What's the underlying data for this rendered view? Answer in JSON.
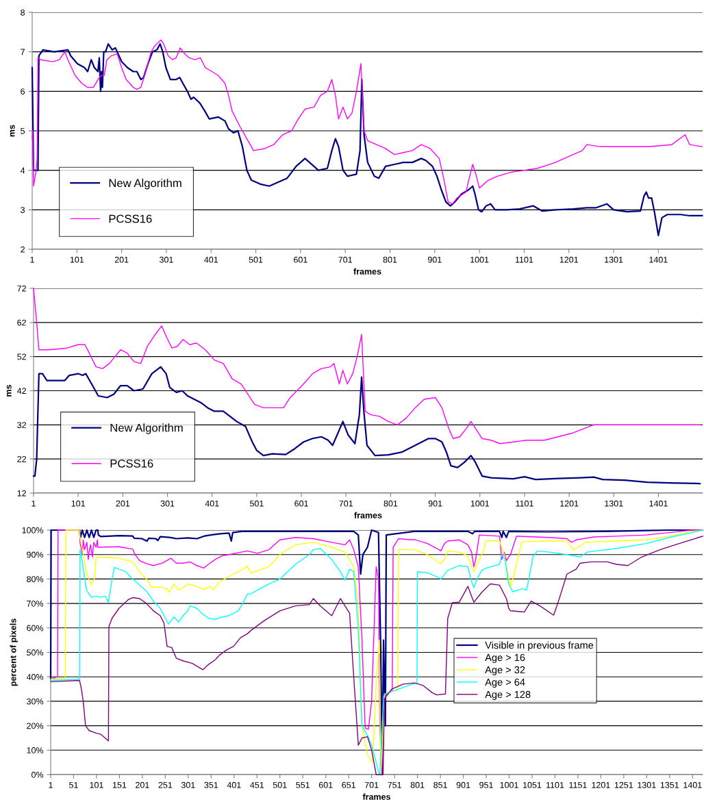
{
  "chart_data": [
    {
      "type": "line",
      "xlabel": "frames",
      "ylabel": "ms",
      "xlim": [
        1,
        1500
      ],
      "ylim": [
        2,
        8
      ],
      "xticks": [
        1,
        101,
        201,
        301,
        401,
        501,
        601,
        701,
        801,
        901,
        1001,
        1101,
        1201,
        1301,
        1401
      ],
      "yticks": [
        2,
        3,
        4,
        5,
        6,
        7,
        8
      ],
      "grid": "y",
      "legend": "bottom left",
      "series": [
        {
          "name": "New Algorithm",
          "color": "#000080",
          "x": [
            1,
            2,
            4,
            14,
            16,
            25,
            50,
            81,
            87,
            102,
            118,
            125,
            133,
            140,
            148,
            151,
            154,
            156,
            158,
            161,
            165,
            171,
            180,
            187,
            201,
            214,
            227,
            235,
            244,
            250,
            260,
            270,
            280,
            287,
            293,
            300,
            310,
            323,
            331,
            338,
            348,
            356,
            362,
            376,
            387,
            397,
            417,
            432,
            440,
            451,
            461,
            471,
            481,
            491,
            511,
            531,
            551,
            571,
            591,
            611,
            631,
            641,
            661,
            671,
            679,
            686,
            696,
            706,
            726,
            734,
            738,
            743,
            751,
            766,
            776,
            791,
            811,
            831,
            851,
            871,
            881,
            896,
            906,
            916,
            926,
            936,
            946,
            961,
            976,
            986,
            991,
            999,
            1006,
            1016,
            1026,
            1036,
            1061,
            1091,
            1121,
            1141,
            1171,
            1211,
            1241,
            1261,
            1286,
            1301,
            1331,
            1361,
            1369,
            1374,
            1379,
            1386,
            1393,
            1401,
            1409,
            1421,
            1451,
            1471,
            1499
          ],
          "values": [
            6.6,
            5.8,
            4.0,
            4.0,
            6.9,
            7.05,
            7.0,
            7.05,
            6.9,
            6.7,
            6.6,
            6.5,
            6.8,
            6.6,
            6.5,
            6.85,
            6.0,
            6.5,
            6.1,
            7.0,
            7.0,
            7.2,
            7.05,
            7.1,
            6.75,
            6.6,
            6.5,
            6.5,
            6.3,
            6.35,
            6.7,
            7.0,
            7.05,
            7.2,
            7.0,
            6.6,
            6.3,
            6.3,
            6.35,
            6.2,
            6.0,
            5.8,
            5.85,
            5.7,
            5.5,
            5.3,
            5.35,
            5.25,
            5.05,
            4.95,
            5.0,
            4.6,
            4.0,
            3.75,
            3.65,
            3.6,
            3.7,
            3.8,
            4.1,
            4.3,
            4.1,
            4.0,
            4.05,
            4.5,
            4.8,
            4.6,
            4.0,
            3.85,
            3.9,
            4.5,
            6.3,
            4.9,
            4.2,
            3.85,
            3.8,
            4.1,
            4.15,
            4.2,
            4.2,
            4.3,
            4.25,
            4.1,
            3.85,
            3.5,
            3.2,
            3.1,
            3.2,
            3.4,
            3.5,
            3.6,
            3.4,
            3.0,
            2.95,
            3.1,
            3.15,
            3.0,
            3.0,
            3.02,
            3.1,
            2.97,
            3.0,
            3.02,
            3.05,
            3.05,
            3.15,
            3.0,
            2.95,
            2.97,
            3.35,
            3.45,
            3.3,
            3.3,
            2.9,
            2.35,
            2.8,
            2.88,
            2.88,
            2.85,
            2.85
          ]
        },
        {
          "name": "PCSS16",
          "color": "#ff00ff",
          "x": [
            1,
            2,
            4,
            10,
            12,
            14,
            20,
            47,
            62,
            74,
            81,
            97,
            112,
            125,
            138,
            148,
            155,
            162,
            168,
            178,
            191,
            201,
            211,
            227,
            235,
            244,
            255,
            267,
            275,
            289,
            295,
            305,
            315,
            323,
            332,
            342,
            352,
            365,
            377,
            388,
            403,
            417,
            432,
            440,
            448,
            466,
            481,
            496,
            521,
            541,
            561,
            581,
            596,
            611,
            631,
            646,
            661,
            671,
            679,
            686,
            696,
            706,
            716,
            726,
            736,
            743,
            751,
            771,
            791,
            811,
            831,
            851,
            871,
            891,
            911,
            921,
            931,
            941,
            951,
            971,
            976,
            986,
            993,
            1001,
            1021,
            1041,
            1071,
            1101,
            1131,
            1171,
            1201,
            1231,
            1241,
            1271,
            1331,
            1381,
            1431,
            1461,
            1471,
            1499
          ],
          "values": [
            4.8,
            5.0,
            3.6,
            4.0,
            4.3,
            6.85,
            6.8,
            6.75,
            6.8,
            7.0,
            6.8,
            6.4,
            6.2,
            6.1,
            6.1,
            6.3,
            6.4,
            6.4,
            6.8,
            6.9,
            6.95,
            6.6,
            6.3,
            6.1,
            6.05,
            6.1,
            6.5,
            7.0,
            7.15,
            7.3,
            7.2,
            6.9,
            6.8,
            6.85,
            7.1,
            6.95,
            6.85,
            6.8,
            6.85,
            6.6,
            6.5,
            6.4,
            6.2,
            5.9,
            5.5,
            5.1,
            4.8,
            4.5,
            4.55,
            4.65,
            4.9,
            5.0,
            5.3,
            5.55,
            5.6,
            5.9,
            6.0,
            6.3,
            5.9,
            5.3,
            5.6,
            5.3,
            5.45,
            6.0,
            6.7,
            5.0,
            4.75,
            4.65,
            4.55,
            4.4,
            4.45,
            4.5,
            4.65,
            4.55,
            4.3,
            3.8,
            3.2,
            3.15,
            3.3,
            3.45,
            3.7,
            4.15,
            3.9,
            3.55,
            3.75,
            3.85,
            3.95,
            4.0,
            4.05,
            4.2,
            4.35,
            4.5,
            4.65,
            4.6,
            4.6,
            4.6,
            4.65,
            4.9,
            4.65,
            4.6
          ]
        }
      ]
    },
    {
      "type": "line",
      "xlabel": "frames",
      "ylabel": "ms",
      "xlim": [
        1,
        1500
      ],
      "ylim": [
        12,
        72
      ],
      "xticks": [
        1,
        101,
        201,
        301,
        401,
        501,
        601,
        701,
        801,
        901,
        1001,
        1101,
        1201,
        1301,
        1401
      ],
      "yticks": [
        12,
        22,
        32,
        42,
        52,
        62,
        72
      ],
      "grid": "y",
      "legend": "bottom left",
      "series": [
        {
          "name": "New Algorithm",
          "color": "#000080",
          "x": [
            1,
            4,
            8,
            13,
            21,
            31,
            56,
            71,
            81,
            101,
            111,
            118,
            131,
            146,
            166,
            181,
            196,
            211,
            226,
            246,
            266,
            286,
            298,
            306,
            321,
            334,
            346,
            361,
            376,
            391,
            406,
            426,
            441,
            456,
            476,
            491,
            501,
            516,
            536,
            566,
            586,
            606,
            626,
            646,
            661,
            671,
            681,
            694,
            706,
            721,
            731,
            736,
            741,
            748,
            766,
            796,
            826,
            856,
            886,
            901,
            916,
            926,
            936,
            951,
            966,
            981,
            991,
            1006,
            1026,
            1076,
            1101,
            1126,
            1176,
            1226,
            1256,
            1276,
            1326,
            1376,
            1426,
            1494
          ],
          "values": [
            17,
            17,
            22,
            47,
            47,
            45,
            45,
            45,
            46.5,
            47,
            46.5,
            47,
            44,
            40.5,
            40,
            41,
            43.5,
            43.5,
            42,
            42.5,
            47,
            49,
            47,
            43,
            41.5,
            42,
            40.5,
            39.5,
            38.5,
            37,
            36,
            36,
            34.5,
            33,
            31.5,
            27,
            24.5,
            23,
            23.5,
            23.3,
            25,
            27,
            28,
            28.5,
            27.5,
            26,
            29,
            33,
            29,
            26.5,
            35,
            46,
            36,
            26,
            23,
            23.2,
            24,
            26,
            28,
            28,
            27,
            24,
            20,
            19.5,
            21,
            23,
            21,
            17,
            16.5,
            16.2,
            16.8,
            16,
            16.3,
            16.5,
            16.7,
            16,
            15.8,
            15.2,
            15,
            14.8
          ]
        },
        {
          "name": "PCSS16",
          "color": "#ff00ff",
          "x": [
            1,
            8,
            13,
            36,
            76,
            101,
            116,
            126,
            141,
            156,
            171,
            196,
            211,
            226,
            241,
            256,
            271,
            288,
            298,
            311,
            323,
            336,
            351,
            366,
            386,
            406,
            426,
            446,
            466,
            481,
            496,
            516,
            536,
            561,
            576,
            606,
            626,
            646,
            666,
            674,
            686,
            694,
            704,
            716,
            726,
            736,
            744,
            756,
            776,
            796,
            816,
            836,
            856,
            876,
            901,
            916,
            931,
            941,
            956,
            971,
            981,
            991,
            1006,
            1026,
            1046,
            1076,
            1106,
            1146,
            1176,
            1206,
            1236,
            1256,
            1326,
            1426,
            1494
          ],
          "values": [
            72,
            62,
            54,
            54,
            54.5,
            55.5,
            55.5,
            53,
            49,
            48.5,
            50,
            54,
            53,
            50.5,
            50,
            55,
            58,
            61,
            58,
            54.5,
            55,
            57,
            55.5,
            56,
            54,
            51,
            50,
            45.5,
            44,
            41,
            38,
            37,
            37,
            37,
            40,
            44,
            47,
            48.5,
            49,
            50,
            44,
            48,
            44,
            47,
            52,
            58.5,
            36,
            35,
            34.5,
            33,
            32,
            34,
            37,
            39.5,
            40,
            37,
            31,
            28,
            28.5,
            31,
            33,
            31,
            28,
            27.5,
            26.5,
            27,
            27.5,
            27.5,
            28.5,
            29.5,
            31,
            32,
            32,
            32,
            32
          ]
        }
      ]
    },
    {
      "type": "line",
      "xlabel": "frames",
      "ylabel": "percent of pixels",
      "xlim": [
        1,
        1423
      ],
      "ylim": [
        0,
        100
      ],
      "xticks": [
        1,
        51,
        101,
        151,
        201,
        251,
        301,
        351,
        401,
        451,
        501,
        551,
        601,
        651,
        701,
        751,
        801,
        851,
        901,
        951,
        1001,
        1051,
        1101,
        1151,
        1201,
        1251,
        1301,
        1351,
        1401
      ],
      "yticks": [
        {
          "value": 0,
          "label": "0%"
        },
        {
          "value": 10,
          "label": "10%"
        },
        {
          "value": 20,
          "label": "20%"
        },
        {
          "value": 30,
          "label": "30%"
        },
        {
          "value": 40,
          "label": "40%"
        },
        {
          "value": 50,
          "label": "50%"
        },
        {
          "value": 60,
          "label": "60%"
        },
        {
          "value": 70,
          "label": "70%"
        },
        {
          "value": 80,
          "label": "80%"
        },
        {
          "value": 90,
          "label": "90%"
        },
        {
          "value": 100,
          "label": "100%"
        }
      ],
      "grid": "y",
      "legend": "right",
      "series": [
        {
          "name": "Visible in previous frame",
          "color": "#000080",
          "x": [
            1,
            2,
            64,
            66,
            70,
            75,
            80,
            85,
            90,
            95,
            100,
            104,
            105,
            110,
            150,
            180,
            183,
            200,
            211,
            215,
            230,
            235,
            240,
            260,
            275,
            300,
            320,
            335,
            350,
            370,
            390,
            395,
            398,
            418,
            438,
            600,
            662,
            672,
            677,
            682,
            692,
            701,
            716,
            721,
            724,
            727,
            731,
            733,
            794,
            911,
            921,
            926,
            980,
            985,
            988,
            995,
            1000,
            1088,
            1210,
            1300,
            1350,
            1423
          ],
          "values": [
            39,
            100,
            100,
            97,
            100,
            97,
            100,
            97,
            100,
            97,
            100,
            100,
            98,
            97.4,
            97.7,
            97.6,
            96.7,
            96.5,
            95.5,
            96.7,
            96.5,
            95.8,
            97.3,
            97,
            96.5,
            96.8,
            96.5,
            97.5,
            98,
            98.5,
            98.8,
            95.5,
            99,
            99.5,
            99.5,
            99.5,
            99.5,
            98,
            82,
            90,
            93,
            100,
            99,
            50,
            0,
            55,
            20,
            98,
            99.5,
            99.5,
            98.5,
            99.5,
            99.5,
            97,
            99.5,
            97,
            99.5,
            99.3,
            99.5,
            99.8,
            100,
            100
          ]
        },
        {
          "name": "Age > 16",
          "color": "#ff00ff",
          "x": [
            1,
            8,
            16,
            17,
            64,
            65,
            67,
            70,
            72,
            75,
            80,
            83,
            85,
            88,
            92,
            95,
            100,
            103,
            104,
            110,
            150,
            180,
            185,
            195,
            210,
            225,
            245,
            263,
            275,
            290,
            305,
            320,
            335,
            345,
            360,
            375,
            390,
            430,
            452,
            477,
            501,
            535,
            574,
            614,
            643,
            653,
            662,
            672,
            680,
            687,
            694,
            701,
            711,
            716,
            719,
            723,
            729,
            741,
            746,
            748,
            760,
            789,
            794,
            823,
            843,
            852,
            860,
            867,
            892,
            911,
            919,
            924,
            928,
            936,
            980,
            985,
            990,
            995,
            1000,
            1004,
            1017,
            1088,
            1127,
            1137,
            1147,
            1186,
            1235,
            1300,
            1350,
            1400,
            1423
          ],
          "values": [
            39,
            39.5,
            40,
            100,
            100,
            95,
            93,
            90,
            96,
            92,
            95,
            88,
            91,
            94,
            89,
            95,
            93,
            96,
            93,
            93,
            93.2,
            92.2,
            90,
            87.5,
            86.3,
            85.5,
            86.5,
            88.5,
            86.5,
            86.5,
            87,
            85.5,
            84.5,
            86,
            88,
            89.5,
            90,
            91.5,
            90.5,
            92,
            96,
            97,
            96.5,
            95,
            94,
            96,
            92,
            85,
            55,
            19,
            18.5,
            30,
            85,
            80,
            20,
            0,
            32,
            34,
            34.5,
            93,
            96.5,
            96,
            96.2,
            94.5,
            92.5,
            91.5,
            94.5,
            95.5,
            96,
            94,
            91,
            85,
            88,
            98,
            97.5,
            88,
            91,
            87.5,
            89,
            90,
            97.5,
            97,
            96.5,
            95,
            96,
            97.2,
            97.5,
            98,
            99,
            100,
            100
          ]
        },
        {
          "name": "Age > 32",
          "color": "#ffff00",
          "x": [
            1,
            33,
            34,
            64,
            65,
            70,
            75,
            80,
            90,
            96,
            100,
            110,
            150,
            180,
            195,
            210,
            220,
            240,
            255,
            260,
            270,
            280,
            290,
            300,
            320,
            335,
            350,
            356,
            365,
            380,
            400,
            420,
            430,
            438,
            477,
            501,
            535,
            574,
            614,
            643,
            662,
            672,
            680,
            692,
            703,
            712,
            718,
            721,
            730,
            741,
            758,
            760,
            789,
            794,
            823,
            852,
            860,
            867,
            892,
            911,
            924,
            931,
            946,
            951,
            980,
            990,
            1000,
            1004,
            1012,
            1019,
            1029,
            1088,
            1127,
            1142,
            1156,
            1166,
            1235,
            1300,
            1350,
            1400,
            1423
          ],
          "values": [
            39,
            39.5,
            100,
            100,
            97,
            92,
            87,
            82,
            77.6,
            80,
            88.6,
            89,
            88.5,
            87,
            83,
            80,
            76.7,
            76.7,
            76,
            74.5,
            78,
            75.5,
            76.5,
            78,
            77,
            75.7,
            77,
            75.5,
            78,
            80,
            82,
            84,
            85.2,
            82.5,
            85,
            90,
            94,
            95,
            93,
            91,
            85,
            70,
            20,
            8,
            5,
            40,
            55,
            0,
            33,
            34,
            34.5,
            92,
            92,
            92,
            90,
            86.2,
            88,
            91.4,
            91,
            89.5,
            82.9,
            86,
            92,
            95.7,
            95.5,
            90,
            81,
            77.1,
            82,
            88,
            95.2,
            95.5,
            95.5,
            91.9,
            93.5,
            95,
            95.5,
            96,
            97.5,
            99.5,
            100
          ]
        },
        {
          "name": "Age > 64",
          "color": "#00ffff",
          "x": [
            1,
            64,
            65,
            70,
            75,
            80,
            90,
            100,
            110,
            120,
            127,
            135,
            140,
            150,
            165,
            180,
            195,
            210,
            225,
            240,
            258,
            270,
            280,
            290,
            300,
            305,
            320,
            330,
            345,
            360,
            375,
            390,
            400,
            410,
            420,
            430,
            438,
            477,
            501,
            535,
            565,
            574,
            589,
            614,
            633,
            643,
            653,
            662,
            672,
            680,
            692,
            701,
            711,
            716,
            719,
            727,
            730,
            760,
            790,
            800,
            801,
            823,
            843,
            852,
            867,
            892,
            911,
            919,
            924,
            931,
            941,
            951,
            980,
            985,
            992,
            1000,
            1009,
            1029,
            1039,
            1046,
            1053,
            1063,
            1088,
            1127,
            1156,
            1171,
            1235,
            1300,
            1350,
            1400,
            1423
          ],
          "values": [
            38.5,
            39,
            92,
            87,
            80,
            75.2,
            72.5,
            73,
            72.5,
            73,
            70.5,
            80,
            84.8,
            84,
            83,
            80,
            77.5,
            75,
            71,
            68,
            61.5,
            64.5,
            62.4,
            65,
            67,
            69,
            68,
            66,
            64,
            63.5,
            64.5,
            65,
            66,
            67,
            70,
            73.8,
            74,
            78,
            80,
            86,
            90,
            92,
            92.5,
            88,
            83,
            79.5,
            84,
            83,
            60,
            20,
            16,
            12,
            5,
            1,
            0,
            32,
            33,
            35,
            37,
            37.5,
            83,
            82.5,
            81,
            80,
            83.5,
            85.5,
            85,
            79,
            76.5,
            80,
            83.5,
            84.5,
            86,
            90,
            88,
            78,
            74.8,
            76,
            75.5,
            82,
            89,
            91.5,
            91,
            90,
            89,
            91,
            92.5,
            94.5,
            97,
            99,
            100
          ]
        },
        {
          "name": "Age > 128",
          "color": "#800080",
          "x": [
            1,
            64,
            68,
            72,
            77,
            85,
            100,
            110,
            127,
            128,
            135,
            150,
            170,
            180,
            195,
            210,
            225,
            240,
            248,
            255,
            265,
            275,
            290,
            310,
            333,
            345,
            360,
            370,
            385,
            400,
            415,
            430,
            438,
            467,
            501,
            535,
            565,
            574,
            589,
            614,
            633,
            653,
            662,
            672,
            680,
            692,
            701,
            711,
            726,
            729,
            745,
            770,
            794,
            813,
            833,
            843,
            862,
            867,
            877,
            892,
            911,
            919,
            924,
            941,
            960,
            980,
            995,
            1000,
            1004,
            1034,
            1044,
            1049,
            1068,
            1098,
            1107,
            1127,
            1147,
            1156,
            1181,
            1215,
            1235,
            1260,
            1290,
            1330,
            1380,
            1423
          ],
          "values": [
            38,
            38.5,
            35,
            30,
            20,
            18,
            17,
            16.5,
            13.8,
            60.5,
            64,
            68,
            71.5,
            72.4,
            72,
            70,
            67,
            65,
            62,
            52.4,
            52,
            47.6,
            46.5,
            45.5,
            42.9,
            45,
            47,
            49,
            51,
            52.5,
            56,
            57.6,
            59,
            63,
            67,
            69,
            69.5,
            72,
            69,
            65,
            72,
            66,
            40,
            12,
            15,
            15.5,
            10,
            0,
            0,
            31,
            35,
            37,
            37.5,
            36.5,
            33.5,
            32.6,
            33,
            63.8,
            70.3,
            70.5,
            77,
            73,
            70.5,
            74.5,
            78,
            77.5,
            72,
            68,
            67,
            66.5,
            69.5,
            71,
            69,
            65.2,
            70,
            82,
            84,
            86.5,
            87,
            87,
            86,
            85.5,
            89,
            92,
            95,
            97.5
          ]
        }
      ]
    }
  ]
}
